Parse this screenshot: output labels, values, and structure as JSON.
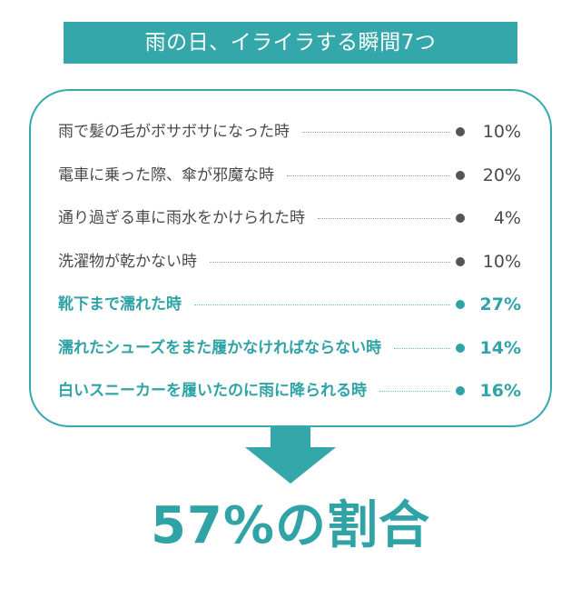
{
  "title": "雨の日、イライラする瞬間7つ",
  "result": "57%の割合",
  "colors": {
    "accent": "#34a7aa",
    "text": "#4a4a4a",
    "dot": "#555555"
  },
  "chart_data": {
    "type": "table",
    "title": "雨の日、イライラする瞬間7つ",
    "rows": [
      {
        "label": "雨で髪の毛がボサボサになった時",
        "value": 10,
        "display": "10%",
        "highlight": false
      },
      {
        "label": "電車に乗った際、傘が邪魔な時",
        "value": 20,
        "display": "20%",
        "highlight": false
      },
      {
        "label": "通り過ぎる車に雨水をかけられた時",
        "value": 4,
        "display": "4%",
        "highlight": false
      },
      {
        "label": "洗濯物が乾かない時",
        "value": 10,
        "display": "10%",
        "highlight": false
      },
      {
        "label": "靴下まで濡れた時",
        "value": 27,
        "display": "27%",
        "highlight": true
      },
      {
        "label": "濡れたシューズをまた履かなければならない時",
        "value": 14,
        "display": "14%",
        "highlight": true
      },
      {
        "label": "白いスニーカーを履いたのに雨に降られる時",
        "value": 16,
        "display": "16%",
        "highlight": true
      }
    ],
    "total_highlighted": "57%"
  }
}
